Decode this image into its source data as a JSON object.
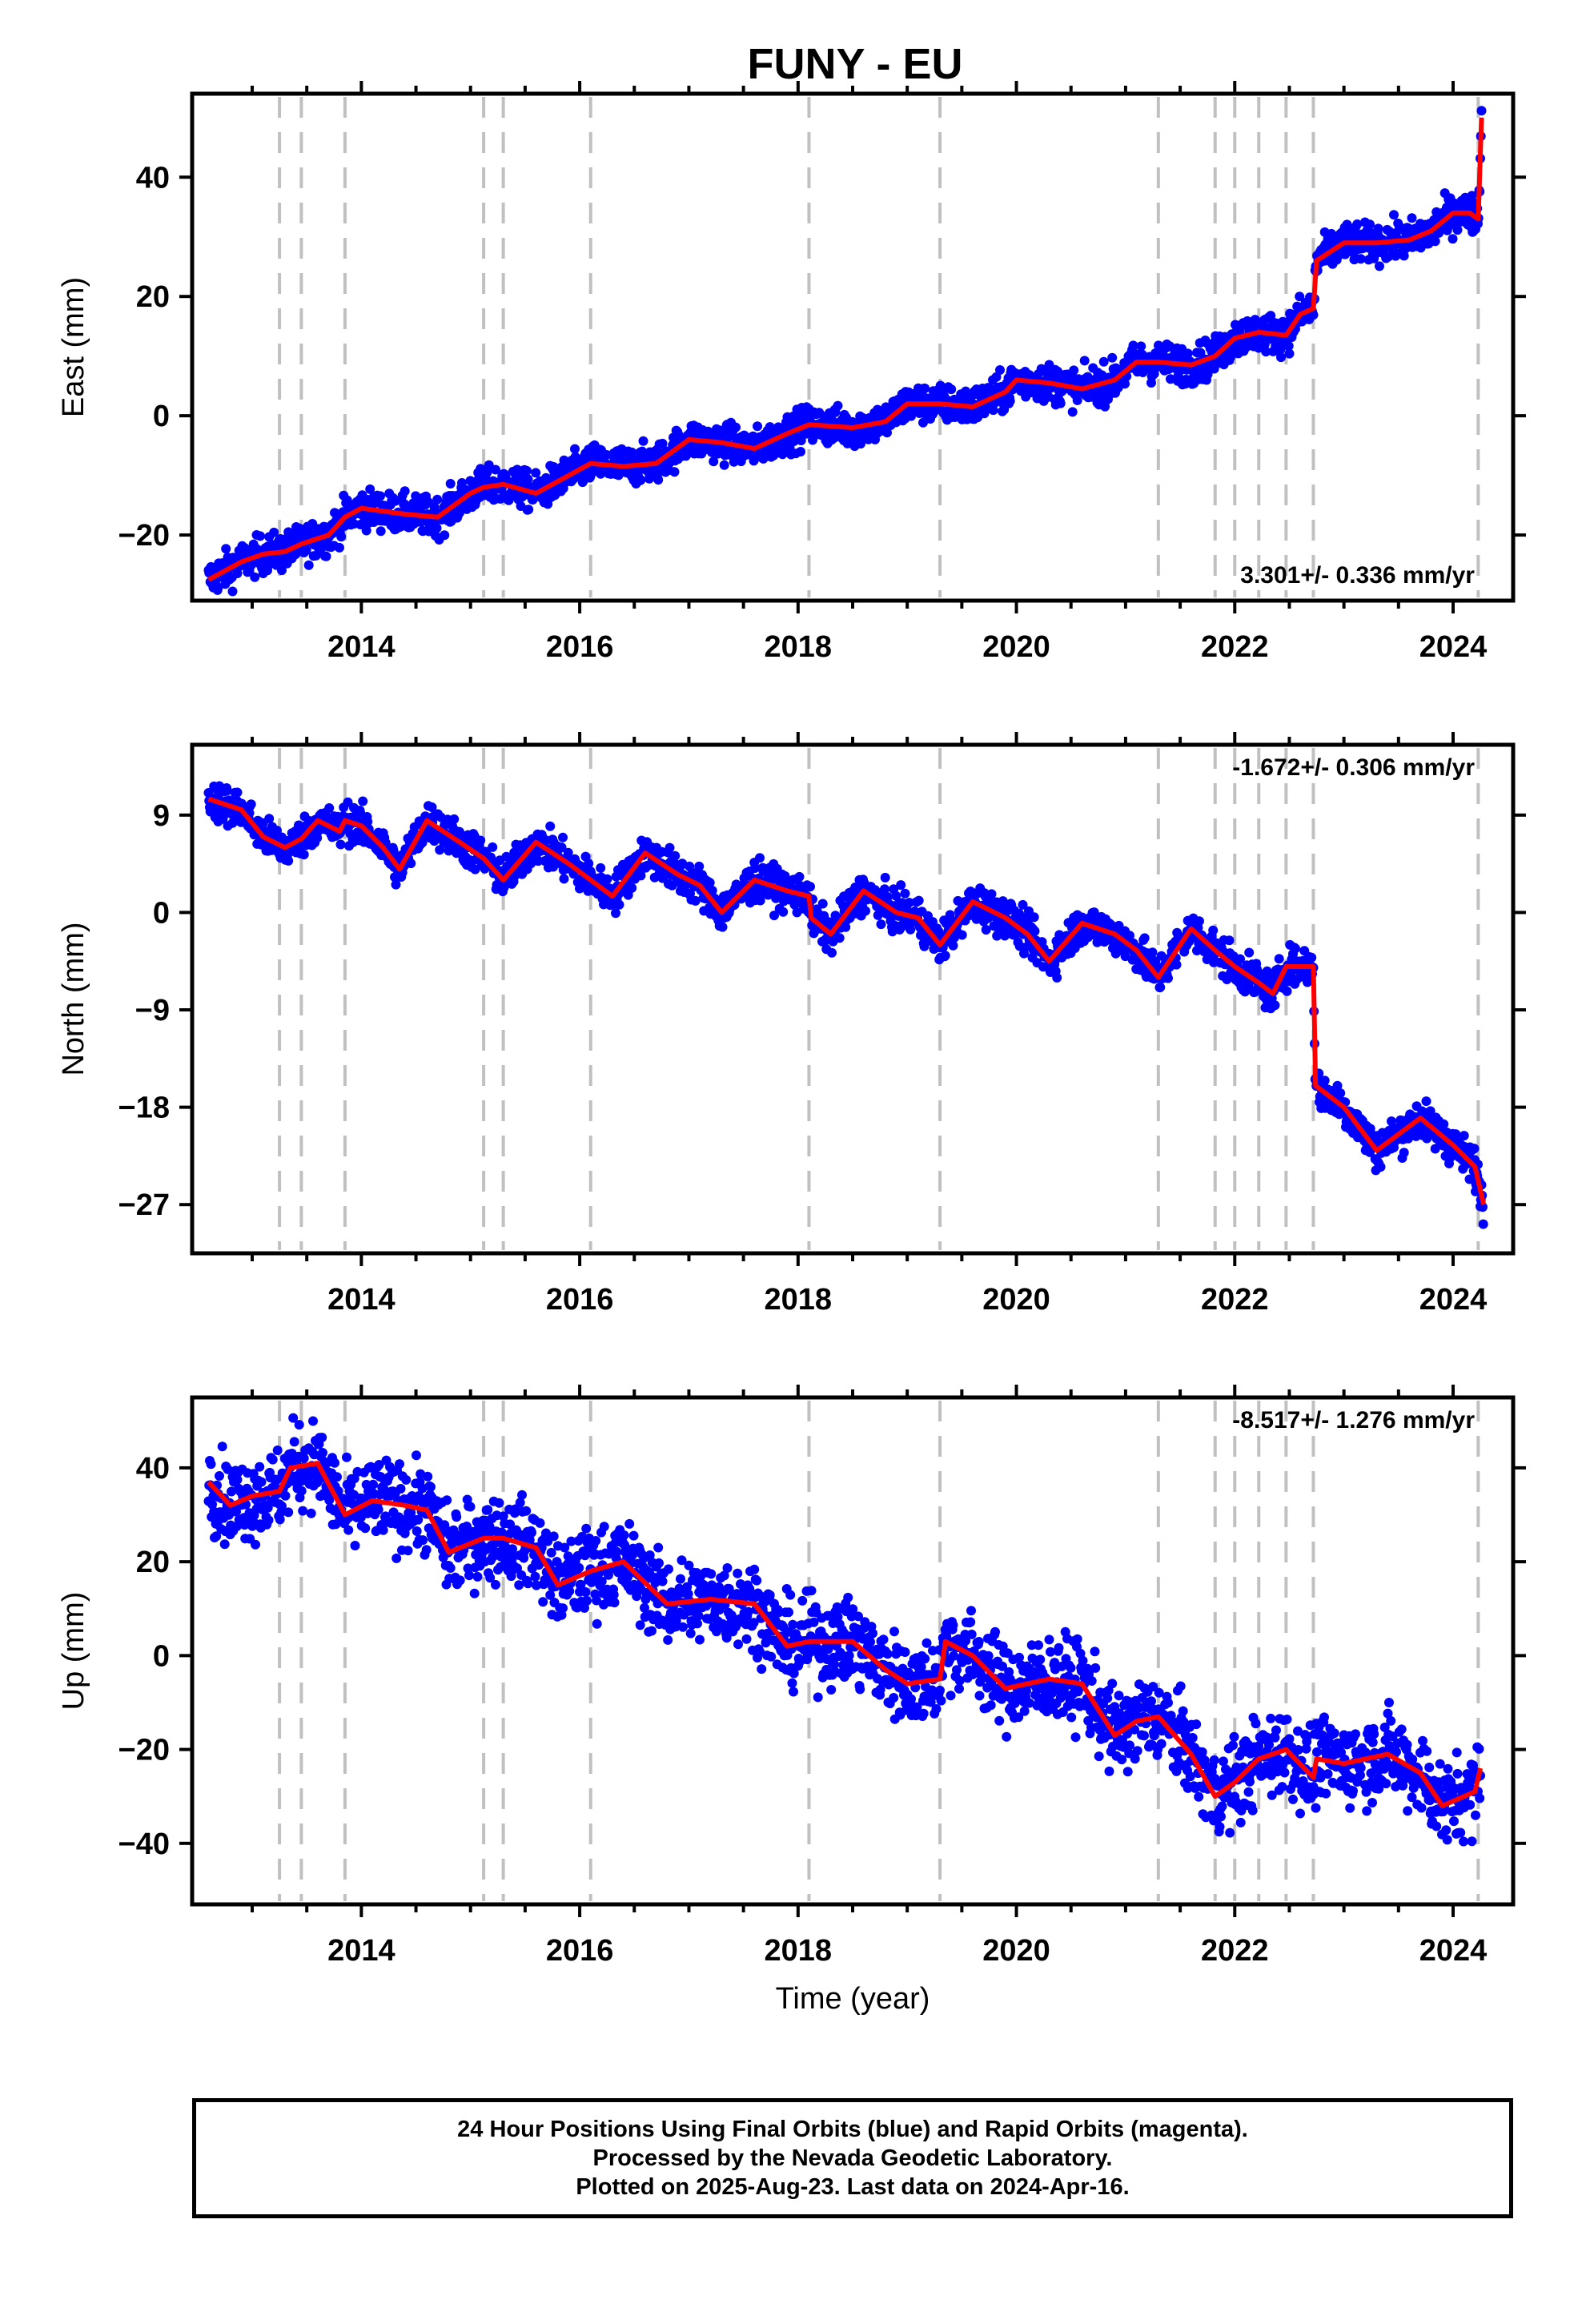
{
  "colors": {
    "final_orbits": "#0000ff",
    "model_fit": "#ff0000",
    "event_lines": "#c0c0c0",
    "frame": "#000000"
  },
  "footer": {
    "line1": "24 Hour Positions Using Final Orbits (blue) and Rapid Orbits (magenta).",
    "line2": "Processed by the Nevada Geodetic Laboratory.",
    "line3": "Plotted on 2025-Aug-23. Last data on 2024-Apr-16."
  },
  "chart_data": {
    "type": "scatter",
    "title": "FUNY - EU",
    "xlabel": "Time (year)",
    "xlim": [
      2012.45,
      2024.55
    ],
    "x_ticks": [
      2014,
      2016,
      2018,
      2020,
      2022,
      2024
    ],
    "event_lines": [
      2013.25,
      2013.45,
      2013.85,
      2015.12,
      2015.3,
      2016.1,
      2018.1,
      2019.3,
      2021.3,
      2021.82,
      2022.0,
      2022.22,
      2022.47,
      2022.72,
      2024.23
    ],
    "panels": [
      {
        "name": "east",
        "ylabel": "East (mm)",
        "ylim": [
          -31,
          54
        ],
        "y_ticks": [
          -20,
          0,
          20,
          40
        ],
        "rate_label": "3.301+/- 0.336 mm/yr",
        "rate_position": "bottom-right",
        "scatter_spread_mm": 1.6,
        "model": [
          [
            2012.6,
            -27.5
          ],
          [
            2012.9,
            -24.5
          ],
          [
            2013.1,
            -23.2
          ],
          [
            2013.3,
            -22.8
          ],
          [
            2013.45,
            -21.5
          ],
          [
            2013.7,
            -20
          ],
          [
            2013.85,
            -17
          ],
          [
            2014.0,
            -15.5
          ],
          [
            2014.4,
            -16.5
          ],
          [
            2014.7,
            -17
          ],
          [
            2015.0,
            -13
          ],
          [
            2015.12,
            -12
          ],
          [
            2015.3,
            -11.5
          ],
          [
            2015.6,
            -13
          ],
          [
            2015.9,
            -10
          ],
          [
            2016.1,
            -8
          ],
          [
            2016.4,
            -8.5
          ],
          [
            2016.7,
            -8
          ],
          [
            2017.0,
            -4
          ],
          [
            2017.3,
            -4.5
          ],
          [
            2017.6,
            -5.5
          ],
          [
            2017.9,
            -3
          ],
          [
            2018.1,
            -1.5
          ],
          [
            2018.5,
            -2
          ],
          [
            2018.8,
            -1
          ],
          [
            2019.0,
            2
          ],
          [
            2019.3,
            2
          ],
          [
            2019.6,
            1.5
          ],
          [
            2019.9,
            4
          ],
          [
            2020.0,
            6
          ],
          [
            2020.3,
            5.5
          ],
          [
            2020.6,
            4.5
          ],
          [
            2020.9,
            6
          ],
          [
            2021.1,
            9
          ],
          [
            2021.3,
            9
          ],
          [
            2021.6,
            8.5
          ],
          [
            2021.82,
            10
          ],
          [
            2022.0,
            13
          ],
          [
            2022.22,
            14
          ],
          [
            2022.47,
            13.5
          ],
          [
            2022.6,
            17
          ],
          [
            2022.72,
            18
          ],
          [
            2022.75,
            26
          ],
          [
            2023.0,
            29
          ],
          [
            2023.3,
            29
          ],
          [
            2023.6,
            29.5
          ],
          [
            2023.8,
            31
          ],
          [
            2024.0,
            34
          ],
          [
            2024.15,
            34
          ],
          [
            2024.23,
            33
          ],
          [
            2024.26,
            50
          ]
        ]
      },
      {
        "name": "north",
        "ylabel": "North (mm)",
        "ylim": [
          -31.5,
          15.5
        ],
        "y_ticks": [
          -27,
          -18,
          -9,
          0,
          9
        ],
        "rate_label": "-1.672+/- 0.306 mm/yr",
        "rate_position": "top-right",
        "scatter_spread_mm": 0.9,
        "model": [
          [
            2012.6,
            10.5
          ],
          [
            2012.9,
            9.5
          ],
          [
            2013.1,
            7
          ],
          [
            2013.3,
            6
          ],
          [
            2013.45,
            6.8
          ],
          [
            2013.6,
            8.5
          ],
          [
            2013.8,
            7.5
          ],
          [
            2013.85,
            8.5
          ],
          [
            2014.0,
            8
          ],
          [
            2014.2,
            6
          ],
          [
            2014.35,
            4
          ],
          [
            2014.6,
            8.5
          ],
          [
            2014.9,
            6.5
          ],
          [
            2015.12,
            5
          ],
          [
            2015.3,
            3
          ],
          [
            2015.6,
            6.5
          ],
          [
            2015.9,
            4.5
          ],
          [
            2016.1,
            3
          ],
          [
            2016.3,
            1.5
          ],
          [
            2016.6,
            5.5
          ],
          [
            2016.9,
            3.5
          ],
          [
            2017.1,
            2.5
          ],
          [
            2017.3,
            0
          ],
          [
            2017.6,
            3
          ],
          [
            2017.9,
            2
          ],
          [
            2018.1,
            1.5
          ],
          [
            2018.12,
            -0.5
          ],
          [
            2018.3,
            -2
          ],
          [
            2018.6,
            2
          ],
          [
            2018.9,
            0
          ],
          [
            2019.1,
            -0.5
          ],
          [
            2019.3,
            -3
          ],
          [
            2019.6,
            1
          ],
          [
            2019.9,
            -0.5
          ],
          [
            2020.1,
            -2
          ],
          [
            2020.3,
            -4.5
          ],
          [
            2020.6,
            -1
          ],
          [
            2020.9,
            -2
          ],
          [
            2021.1,
            -3.5
          ],
          [
            2021.3,
            -6
          ],
          [
            2021.6,
            -1.5
          ],
          [
            2021.82,
            -3.5
          ],
          [
            2022.0,
            -5
          ],
          [
            2022.22,
            -6.5
          ],
          [
            2022.35,
            -7.5
          ],
          [
            2022.47,
            -5
          ],
          [
            2022.6,
            -5
          ],
          [
            2022.72,
            -5
          ],
          [
            2022.74,
            -16
          ],
          [
            2023.0,
            -18
          ],
          [
            2023.3,
            -22
          ],
          [
            2023.7,
            -19
          ],
          [
            2024.0,
            -21.5
          ],
          [
            2024.2,
            -23.5
          ],
          [
            2024.28,
            -27
          ]
        ]
      },
      {
        "name": "up",
        "ylabel": "Up (mm)",
        "ylim": [
          -53,
          55
        ],
        "y_ticks": [
          -40,
          -20,
          0,
          20,
          40
        ],
        "rate_label": "-8.517+/- 1.276 mm/yr",
        "rate_position": "top-right",
        "scatter_spread_mm": 4.5,
        "model": [
          [
            2012.6,
            37
          ],
          [
            2012.8,
            32
          ],
          [
            2013.0,
            34
          ],
          [
            2013.25,
            35
          ],
          [
            2013.35,
            40
          ],
          [
            2013.6,
            41
          ],
          [
            2013.85,
            30
          ],
          [
            2014.1,
            33
          ],
          [
            2014.4,
            32
          ],
          [
            2014.6,
            31
          ],
          [
            2014.8,
            22
          ],
          [
            2015.12,
            25
          ],
          [
            2015.3,
            25
          ],
          [
            2015.6,
            23
          ],
          [
            2015.8,
            15
          ],
          [
            2016.1,
            18
          ],
          [
            2016.4,
            20
          ],
          [
            2016.8,
            11
          ],
          [
            2017.2,
            12
          ],
          [
            2017.6,
            11
          ],
          [
            2017.9,
            2
          ],
          [
            2018.1,
            3
          ],
          [
            2018.5,
            3
          ],
          [
            2018.8,
            -3
          ],
          [
            2019.0,
            -6
          ],
          [
            2019.3,
            -5
          ],
          [
            2019.35,
            3
          ],
          [
            2019.6,
            0
          ],
          [
            2019.9,
            -7
          ],
          [
            2020.3,
            -5
          ],
          [
            2020.6,
            -6
          ],
          [
            2020.9,
            -17
          ],
          [
            2021.1,
            -14
          ],
          [
            2021.3,
            -13
          ],
          [
            2021.6,
            -21
          ],
          [
            2021.82,
            -30
          ],
          [
            2022.0,
            -27
          ],
          [
            2022.22,
            -22
          ],
          [
            2022.47,
            -20
          ],
          [
            2022.72,
            -26
          ],
          [
            2022.75,
            -22
          ],
          [
            2023.0,
            -23
          ],
          [
            2023.4,
            -21
          ],
          [
            2023.7,
            -25
          ],
          [
            2023.9,
            -32
          ],
          [
            2024.0,
            -31
          ],
          [
            2024.2,
            -29
          ],
          [
            2024.25,
            -24
          ]
        ]
      }
    ]
  }
}
